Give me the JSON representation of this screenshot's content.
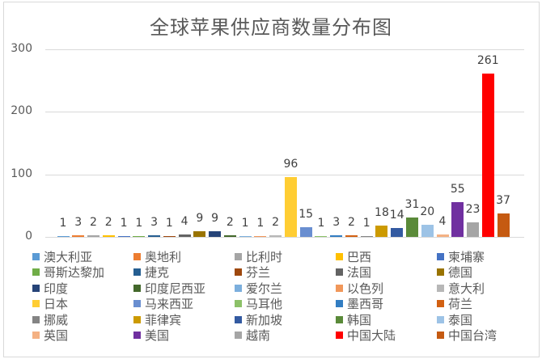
{
  "chart_data": {
    "type": "bar",
    "title": "全球苹果供应商数量分布图",
    "xlabel": "",
    "ylabel": "",
    "ylim": [
      0,
      300
    ],
    "yticks": [
      0,
      100,
      200,
      300
    ],
    "grid": true,
    "legend_position": "bottom",
    "categories": [
      "澳大利亚",
      "奥地利",
      "比利时",
      "巴西",
      "柬埔寨",
      "哥斯达黎加",
      "捷克",
      "芬兰",
      "法国",
      "德国",
      "印度",
      "印度尼西亚",
      "爱尔兰",
      "以色列",
      "意大利",
      "日本",
      "马来西亚",
      "马耳他",
      "墨西哥",
      "荷兰",
      "挪威",
      "菲律宾",
      "新加坡",
      "韩国",
      "泰国",
      "英国",
      "美国",
      "越南",
      "中国大陆",
      "中国台湾"
    ],
    "values": [
      1,
      3,
      2,
      2,
      1,
      1,
      3,
      1,
      4,
      9,
      9,
      2,
      1,
      1,
      2,
      96,
      15,
      1,
      3,
      2,
      1,
      18,
      14,
      31,
      20,
      4,
      55,
      23,
      261,
      37
    ],
    "colors": [
      "#5b9bd5",
      "#ed7d31",
      "#a5a5a5",
      "#ffc000",
      "#4472c4",
      "#70ad47",
      "#255e91",
      "#9e480e",
      "#636363",
      "#997300",
      "#264478",
      "#43682b",
      "#7cafdd",
      "#f1975a",
      "#b7b7b7",
      "#ffcd33",
      "#698ed0",
      "#8cc168",
      "#327dc2",
      "#d26012",
      "#848484",
      "#cc9a00",
      "#335aa1",
      "#5a8a39",
      "#9dc3e6",
      "#f4b183",
      "#7030a0",
      "#a5a5a5",
      "#ff0000",
      "#c55a11"
    ]
  },
  "axis": {
    "y_labels": [
      "300",
      "200",
      "100",
      "0"
    ]
  },
  "labels": [
    "1",
    "3",
    "2",
    "2",
    "1",
    "1",
    "3",
    "1",
    "4",
    "9",
    "9",
    "2",
    "1",
    "1",
    "2",
    "96",
    "15",
    "1",
    "3",
    "2",
    "1",
    "18",
    "14",
    "31",
    "20",
    "4",
    "55",
    "23",
    "261",
    "37"
  ]
}
